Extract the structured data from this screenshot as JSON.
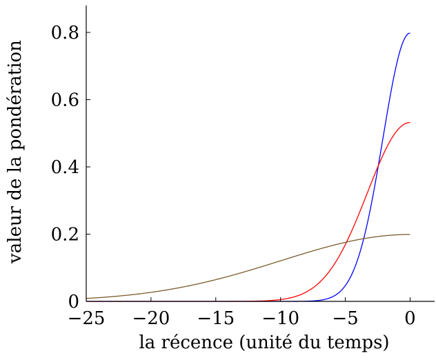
{
  "chart_data": {
    "type": "line",
    "xlabel": "la récence (unité du temps)",
    "ylabel": "valeur de la pondération",
    "xlim": [
      -25,
      2
    ],
    "ylim": [
      0,
      0.88
    ],
    "grid": false,
    "xticks": [
      {
        "value": -25,
        "label": "−25"
      },
      {
        "value": -20,
        "label": "−20"
      },
      {
        "value": -15,
        "label": "−15"
      },
      {
        "value": -10,
        "label": "−10"
      },
      {
        "value": -5,
        "label": "−5"
      },
      {
        "value": 0,
        "label": "0"
      }
    ],
    "yticks": [
      {
        "value": 0,
        "label": "0"
      },
      {
        "value": 0.2,
        "label": "0.2"
      },
      {
        "value": 0.4,
        "label": "0.4"
      },
      {
        "value": 0.6,
        "label": "0.6"
      },
      {
        "value": 0.8,
        "label": "0.8"
      }
    ],
    "series": [
      {
        "color": "#0000ff",
        "curve": "gaussian",
        "peak": 0.798,
        "sigma": 2.1
      },
      {
        "color": "#ff0000",
        "curve": "gaussian",
        "peak": 0.532,
        "sigma": 3.3
      },
      {
        "color": "#7a5a2a",
        "curve": "gaussian",
        "peak": 0.199,
        "sigma": 10.0
      }
    ]
  }
}
